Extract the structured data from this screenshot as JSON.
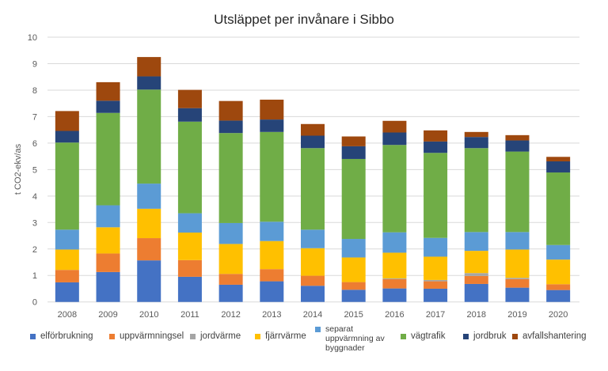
{
  "chart_data": {
    "type": "bar",
    "stacked": true,
    "title": "Utsläppet per invånare i Sibbo",
    "xlabel": "",
    "ylabel": "t CO2-ekv/as",
    "ylim": [
      0,
      10
    ],
    "yticks": [
      "0",
      "1",
      "2",
      "3",
      "4",
      "5",
      "6",
      "7",
      "8",
      "9",
      "10"
    ],
    "grid": true,
    "legend_position": "bottom",
    "categories": [
      "2008",
      "2009",
      "2010",
      "2011",
      "2012",
      "2013",
      "2014",
      "2015",
      "2016",
      "2017",
      "2018",
      "2019",
      "2020"
    ],
    "series": [
      {
        "name": "elförbrukning",
        "color": "#4472c4",
        "values": [
          0.74,
          1.13,
          1.57,
          0.95,
          0.65,
          0.78,
          0.61,
          0.46,
          0.51,
          0.5,
          0.68,
          0.54,
          0.45
        ]
      },
      {
        "name": "uppvärmningsel",
        "color": "#ed7d31",
        "values": [
          0.47,
          0.7,
          0.84,
          0.63,
          0.41,
          0.46,
          0.38,
          0.29,
          0.35,
          0.28,
          0.3,
          0.32,
          0.22
        ]
      },
      {
        "name": "jordvärme",
        "color": "#a5a5a5",
        "values": [
          0.0,
          0.0,
          0.0,
          0.0,
          0.0,
          0.0,
          0.0,
          0.0,
          0.03,
          0.05,
          0.11,
          0.05,
          0.0
        ]
      },
      {
        "name": "fjärrvärme",
        "color": "#ffc000",
        "values": [
          0.77,
          0.99,
          1.11,
          1.04,
          1.13,
          1.06,
          1.04,
          0.93,
          0.97,
          0.88,
          0.84,
          1.07,
          0.93
        ]
      },
      {
        "name": "separat\nuppvärmning av\nbyggnader",
        "color": "#5b9bd5",
        "values": [
          0.75,
          0.83,
          0.95,
          0.73,
          0.79,
          0.73,
          0.7,
          0.7,
          0.77,
          0.71,
          0.71,
          0.66,
          0.55
        ]
      },
      {
        "name": "vägtrafik",
        "color": "#70ad47",
        "values": [
          3.29,
          3.49,
          3.55,
          3.46,
          3.4,
          3.39,
          3.08,
          3.02,
          3.3,
          3.21,
          3.17,
          3.04,
          2.74
        ]
      },
      {
        "name": "jordbruk",
        "color": "#264478",
        "values": [
          0.44,
          0.46,
          0.5,
          0.51,
          0.47,
          0.47,
          0.47,
          0.48,
          0.47,
          0.43,
          0.42,
          0.42,
          0.42
        ]
      },
      {
        "name": "avfallshantering",
        "color": "#9e480e",
        "values": [
          0.75,
          0.7,
          0.73,
          0.69,
          0.74,
          0.75,
          0.44,
          0.37,
          0.44,
          0.42,
          0.19,
          0.2,
          0.17
        ]
      }
    ]
  }
}
